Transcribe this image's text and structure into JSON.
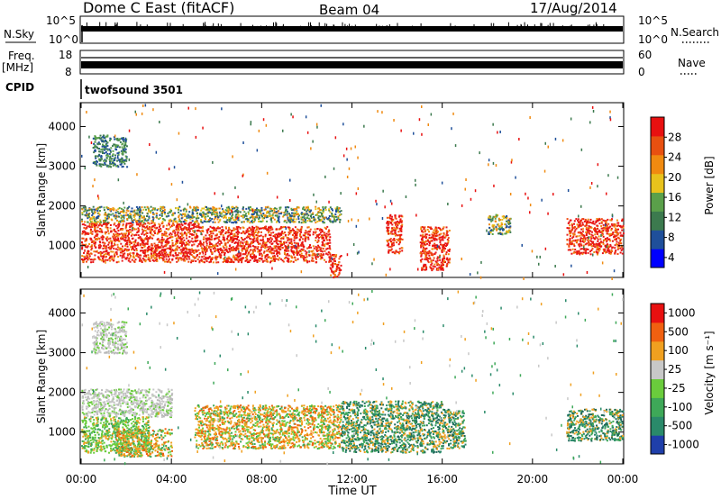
{
  "header": {
    "station": "Dome C East (fitACF)",
    "beam": "Beam 04",
    "date": "17/Aug/2014"
  },
  "top_panels": {
    "nsky_label": "N.Sky",
    "nsky_ticks": [
      "10^5",
      "10^0"
    ],
    "nsearch_label": "N.Search",
    "nsearch_ticks": [
      "10^5",
      "10^0"
    ],
    "freq_label": "Freq.",
    "freq_unit": "[MHz]",
    "freq_ticks": [
      "18",
      "8"
    ],
    "nave_label": "Nave",
    "nave_ticks": [
      "60",
      "0"
    ],
    "cpid_label": "CPID",
    "cpid_value": "twofsound 3501"
  },
  "chart_data": [
    {
      "type": "heatmap",
      "panel": "power",
      "ylabel": "Slant Range [km]",
      "xlabel": "",
      "ylim": [
        200,
        4600
      ],
      "xlim": [
        0,
        24
      ],
      "yticks": [
        "1000",
        "2000",
        "3000",
        "4000"
      ],
      "xticks": [],
      "colorbar": {
        "label": "Power [dB]",
        "ticks": [
          "28",
          "24",
          "20",
          "16",
          "12",
          "8",
          "4"
        ],
        "colors": [
          "#0000ff",
          "#1f4f9a",
          "#3c7a4e",
          "#5aa04a",
          "#e8c21c",
          "#f08a10",
          "#e85010",
          "#e81010"
        ]
      },
      "regions": [
        {
          "t0": 0.0,
          "t1": 5.2,
          "r0": 600,
          "r1": 1600,
          "level": "high"
        },
        {
          "t0": 5.2,
          "t1": 11.0,
          "r0": 600,
          "r1": 1500,
          "level": "high"
        },
        {
          "t0": 0.0,
          "t1": 11.5,
          "r0": 1600,
          "r1": 2000,
          "level": "mid"
        },
        {
          "t0": 11.0,
          "t1": 11.5,
          "r0": 200,
          "r1": 800,
          "level": "high"
        },
        {
          "t0": 13.5,
          "t1": 14.2,
          "r0": 800,
          "r1": 1800,
          "level": "high"
        },
        {
          "t0": 15.0,
          "t1": 16.3,
          "r0": 400,
          "r1": 1500,
          "level": "high"
        },
        {
          "t0": 18.0,
          "t1": 19.0,
          "r0": 1300,
          "r1": 1800,
          "level": "mid"
        },
        {
          "t0": 21.5,
          "t1": 24.0,
          "r0": 800,
          "r1": 1700,
          "level": "high"
        },
        {
          "t0": 0.5,
          "t1": 2.0,
          "r0": 3000,
          "r1": 3800,
          "level": "low"
        }
      ]
    },
    {
      "type": "heatmap",
      "panel": "velocity",
      "ylabel": "Slant Range [km]",
      "xlabel": "Time UT",
      "ylim": [
        200,
        4600
      ],
      "xlim": [
        0,
        24
      ],
      "yticks": [
        "1000",
        "2000",
        "3000",
        "4000"
      ],
      "xticks": [
        "00:00",
        "04:00",
        "08:00",
        "12:00",
        "16:00",
        "20:00",
        "00:00"
      ],
      "colorbar": {
        "label": "Velocity [m s⁻¹]",
        "ticks": [
          "1000",
          "500",
          "100",
          "25",
          "-25",
          "-100",
          "-500",
          "-1000"
        ],
        "colors": [
          "#1f3faa",
          "#2a8a6a",
          "#3ea858",
          "#6acc3c",
          "#c8c8c8",
          "#f0a020",
          "#f06010",
          "#e81010"
        ]
      },
      "regions": [
        {
          "t0": 0.0,
          "t1": 4.0,
          "r0": 1400,
          "r1": 2100,
          "level": "grey"
        },
        {
          "t0": 0.0,
          "t1": 3.0,
          "r0": 500,
          "r1": 1400,
          "level": "green"
        },
        {
          "t0": 1.5,
          "t1": 4.0,
          "r0": 400,
          "r1": 1100,
          "level": "orange"
        },
        {
          "t0": 5.0,
          "t1": 11.5,
          "r0": 600,
          "r1": 1700,
          "level": "orange"
        },
        {
          "t0": 11.5,
          "t1": 16.0,
          "r0": 500,
          "r1": 1800,
          "level": "teal"
        },
        {
          "t0": 16.0,
          "t1": 17.0,
          "r0": 600,
          "r1": 1600,
          "level": "teal"
        },
        {
          "t0": 21.5,
          "t1": 24.0,
          "r0": 800,
          "r1": 1600,
          "level": "teal"
        },
        {
          "t0": 0.5,
          "t1": 2.0,
          "r0": 3000,
          "r1": 3800,
          "level": "grey"
        }
      ]
    }
  ]
}
